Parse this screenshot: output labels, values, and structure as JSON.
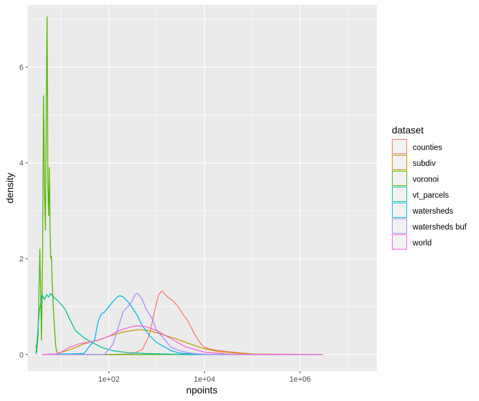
{
  "chart_data": {
    "type": "area",
    "xlabel": "npoints",
    "ylabel": "density",
    "x_scale": "log10",
    "xlim": [
      2,
      40000000
    ],
    "ylim": [
      -0.35,
      7.3
    ],
    "x_ticks": [
      {
        "value": 100,
        "label": "1e+02"
      },
      {
        "value": 10000,
        "label": "1e+04"
      },
      {
        "value": 1000000,
        "label": "1e+06"
      }
    ],
    "y_ticks": [
      {
        "value": 0,
        "label": "0"
      },
      {
        "value": 2,
        "label": "2"
      },
      {
        "value": 4,
        "label": "4"
      },
      {
        "value": 6,
        "label": "6"
      }
    ],
    "grid": true,
    "legend": {
      "title": "dataset",
      "position": "right"
    },
    "series": [
      {
        "name": "counties",
        "color": "#F8766D",
        "x": [
          4,
          100,
          300,
          500,
          700,
          900,
          1100,
          1300,
          1500,
          1800,
          2200,
          2800,
          3500,
          4500,
          6000,
          8000,
          10000,
          15000,
          30000,
          100000,
          3000000
        ],
        "y": [
          0,
          0,
          0.01,
          0.1,
          0.4,
          0.9,
          1.25,
          1.33,
          1.25,
          1.18,
          1.12,
          1.0,
          0.85,
          0.7,
          0.45,
          0.25,
          0.15,
          0.1,
          0.06,
          0.01,
          0
        ]
      },
      {
        "name": "subdiv",
        "color": "#C49A00",
        "x": [
          4,
          8,
          15,
          30,
          60,
          100,
          200,
          400,
          700,
          1200,
          2500,
          5000,
          10000,
          20000,
          50000,
          100000,
          300000,
          3000000
        ],
        "y": [
          0,
          0.01,
          0.1,
          0.22,
          0.3,
          0.38,
          0.47,
          0.52,
          0.5,
          0.43,
          0.33,
          0.22,
          0.12,
          0.06,
          0.03,
          0.01,
          0,
          0
        ]
      },
      {
        "name": "voronoi",
        "color": "#53B400",
        "x": [
          3.0,
          3.1,
          3.3,
          3.6,
          3.9,
          4.1,
          4.3,
          4.5,
          4.7,
          4.9,
          5.1,
          5.3,
          5.5,
          5.7,
          5.9,
          6.1,
          6.3,
          6.5,
          6.8,
          7.1,
          7.4,
          7.7,
          8.0,
          8.5,
          9.0,
          10,
          12,
          15,
          20,
          30,
          100,
          3000000
        ],
        "y": [
          0.2,
          0.05,
          0.4,
          2.2,
          0.3,
          2.0,
          5.4,
          3.5,
          2.6,
          5.0,
          7.05,
          3.5,
          2.9,
          3.9,
          2.5,
          2.0,
          2.05,
          1.5,
          1.1,
          0.75,
          0.45,
          0.2,
          0.08,
          0.03,
          0.01,
          0,
          0,
          0,
          0,
          0,
          0,
          0
        ]
      },
      {
        "name": "vt_parcels",
        "color": "#00C094",
        "x": [
          3.0,
          3.5,
          4.0,
          4.5,
          5.0,
          5.5,
          6.0,
          7.0,
          8.0,
          10,
          12,
          15,
          20,
          30,
          45,
          70,
          120,
          250,
          600,
          1500,
          5000,
          3000000
        ],
        "y": [
          0,
          0.9,
          1.25,
          1.15,
          1.25,
          1.2,
          1.27,
          1.2,
          1.15,
          1.05,
          0.95,
          0.75,
          0.5,
          0.35,
          0.25,
          0.15,
          0.08,
          0.04,
          0.02,
          0.01,
          0,
          0
        ]
      },
      {
        "name": "watersheds",
        "color": "#00B6EB",
        "x": [
          4,
          30,
          50,
          60,
          70,
          80,
          100,
          120,
          150,
          170,
          200,
          250,
          300,
          400,
          500,
          700,
          1000,
          1500,
          2000,
          3000,
          5000,
          8000,
          3000000
        ],
        "y": [
          0,
          0.02,
          0.3,
          0.7,
          0.85,
          0.88,
          1.0,
          1.1,
          1.2,
          1.23,
          1.2,
          1.1,
          1.0,
          0.8,
          0.6,
          0.4,
          0.25,
          0.15,
          0.08,
          0.03,
          0.01,
          0,
          0
        ]
      },
      {
        "name": "watersheds buf",
        "color": "#A58AFF",
        "x": [
          4,
          80,
          120,
          150,
          200,
          250,
          300,
          350,
          400,
          500,
          600,
          800,
          1000,
          1500,
          2000,
          3000,
          5000,
          8000,
          15000,
          3000000
        ],
        "y": [
          0,
          0,
          0.2,
          0.5,
          0.9,
          1.0,
          1.1,
          1.25,
          1.28,
          1.15,
          0.95,
          0.75,
          0.5,
          0.3,
          0.15,
          0.08,
          0.03,
          0.01,
          0,
          0
        ]
      },
      {
        "name": "world",
        "color": "#FB61D7",
        "x": [
          4,
          8,
          10,
          15,
          25,
          40,
          60,
          100,
          150,
          200,
          300,
          400,
          600,
          1000,
          2000,
          4000,
          10000,
          30000,
          100000,
          3000000
        ],
        "y": [
          0,
          0.01,
          0.05,
          0.15,
          0.23,
          0.26,
          0.3,
          0.38,
          0.48,
          0.53,
          0.58,
          0.6,
          0.58,
          0.5,
          0.33,
          0.16,
          0.05,
          0.01,
          0,
          0
        ]
      }
    ]
  }
}
